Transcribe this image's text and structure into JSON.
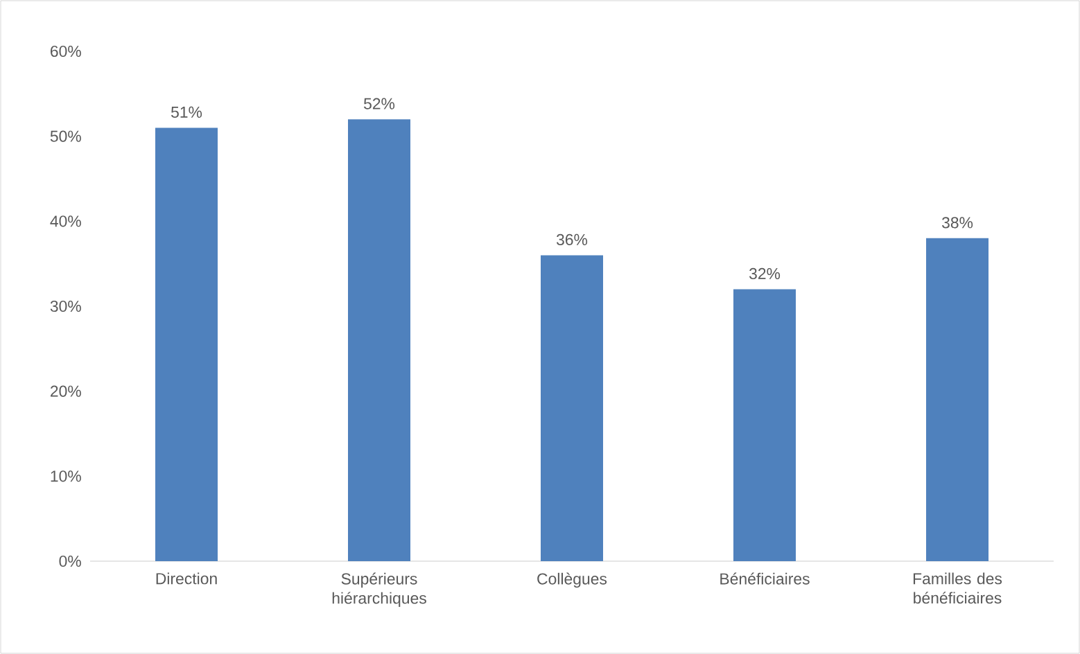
{
  "chart_data": {
    "type": "bar",
    "categories": [
      "Direction",
      "Supérieurs hiérarchiques",
      "Collègues",
      "Bénéficiaires",
      "Familles des bénéficiaires"
    ],
    "values": [
      51,
      52,
      36,
      32,
      38
    ],
    "value_labels": [
      "51%",
      "52%",
      "36%",
      "32%",
      "38%"
    ],
    "color": "#4f81bd",
    "ylim": [
      0,
      60
    ],
    "yticks": [
      {
        "value": 0,
        "label": "0%"
      },
      {
        "value": 10,
        "label": "10%"
      },
      {
        "value": 20,
        "label": "20%"
      },
      {
        "value": 30,
        "label": "30%"
      },
      {
        "value": 40,
        "label": "40%"
      },
      {
        "value": 50,
        "label": "50%"
      },
      {
        "value": 60,
        "label": "60%"
      }
    ],
    "grid": false
  }
}
